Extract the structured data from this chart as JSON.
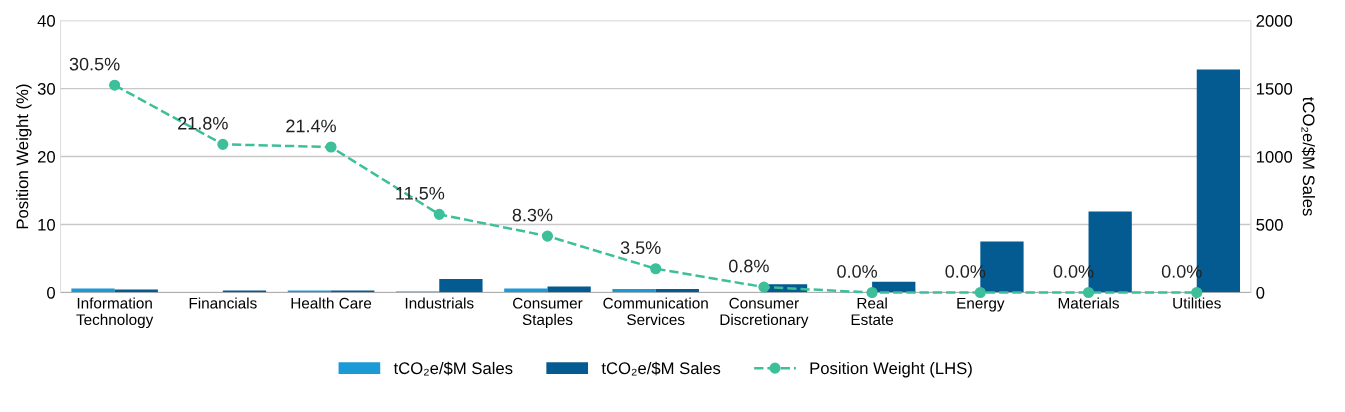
{
  "chart_data": {
    "type": "bar",
    "categories": [
      "Information\nTechnology",
      "Financials",
      "Health Care",
      "Industrials",
      "Consumer\nStaples",
      "Communication\nServices",
      "Consumer\nDiscretionary",
      "Real\nEstate",
      "Energy",
      "Materials",
      "Utilities"
    ],
    "series": [
      {
        "name": "tCO₂e/$M Sales",
        "color": "#1b9ad6",
        "axis": "y2",
        "values": [
          30,
          0,
          15,
          8,
          30,
          25,
          0,
          0,
          0,
          0,
          0
        ]
      },
      {
        "name": "tCO₂e/$M Sales",
        "color": "#045b91",
        "axis": "y2",
        "values": [
          22,
          15,
          15,
          100,
          45,
          25,
          60,
          80,
          375,
          595,
          1640
        ]
      },
      {
        "name": "Position Weight (LHS)",
        "type": "line",
        "color": "#3dbf9a",
        "line_style": "dashed",
        "marker": "circle",
        "values": [
          30.5,
          21.8,
          21.4,
          11.5,
          8.3,
          3.5,
          0.8,
          0.0,
          0.0,
          0.0,
          0.0
        ],
        "value_labels": [
          "30.5%",
          "21.8%",
          "21.4%",
          "11.5%",
          "8.3%",
          "3.5%",
          "0.8%",
          "0.0%",
          "0.0%",
          "0.0%",
          "0.0%"
        ]
      }
    ],
    "ylabel": "Position Weight (%)",
    "y2label": "tCO₂e/$M Sales",
    "ylim": [
      0,
      40
    ],
    "yticks": [
      0,
      10,
      20,
      30,
      40
    ],
    "y2lim": [
      0,
      2000
    ],
    "y2ticks": [
      0,
      500,
      1000,
      1500,
      2000
    ],
    "grid": "y",
    "legend": "bottom"
  }
}
